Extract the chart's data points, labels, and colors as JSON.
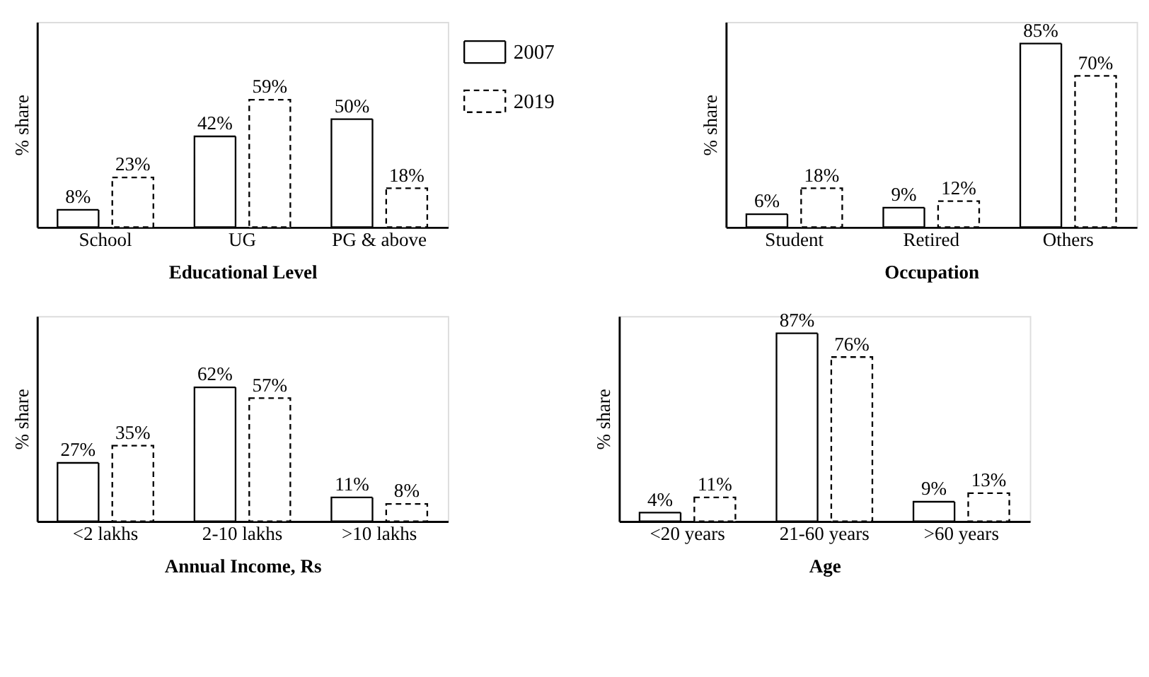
{
  "chart_data": [
    {
      "type": "bar",
      "categories": [
        "School",
        "UG",
        "PG & above"
      ],
      "xlabel": "Educational Level",
      "ylabel": "% share",
      "ylim": [
        0,
        95
      ],
      "tick_labels": "x",
      "legend": "top right",
      "grid": false,
      "series": [
        {
          "name": "2007",
          "color": "#ffffff",
          "line_style": "solid",
          "values": [
            8,
            42,
            50
          ],
          "value_labels": [
            "8%",
            "42%",
            "50%"
          ]
        },
        {
          "name": "2019",
          "color": "#ffffff",
          "line_style": "dashed",
          "values": [
            23,
            59,
            18
          ],
          "value_labels": [
            "23%",
            "59%",
            "18%"
          ]
        }
      ]
    },
    {
      "type": "bar",
      "categories": [
        "Student",
        "Retired",
        "Others"
      ],
      "xlabel": "Occupation",
      "ylabel": "% share",
      "ylim": [
        0,
        95
      ],
      "tick_labels": "x",
      "legend": false,
      "grid": false,
      "series": [
        {
          "color": "#ffffff",
          "line_style": "solid",
          "values": [
            6,
            9,
            85
          ],
          "value_labels": [
            "6%",
            "9%",
            "85%"
          ]
        },
        {
          "color": "#ffffff",
          "line_style": "dashed",
          "values": [
            18,
            12,
            70
          ],
          "value_labels": [
            "18%",
            "12%",
            "70%"
          ]
        }
      ]
    },
    {
      "type": "bar",
      "categories": [
        "<2 lakhs",
        "2-10 lakhs",
        ">10 lakhs"
      ],
      "xlabel": "Annual Income, Rs",
      "ylabel": "% share",
      "ylim": [
        0,
        95
      ],
      "tick_labels": "x",
      "legend": false,
      "grid": false,
      "series": [
        {
          "color": "#ffffff",
          "line_style": "solid",
          "values": [
            27,
            62,
            11
          ],
          "value_labels": [
            "27%",
            "62%",
            "11%"
          ]
        },
        {
          "color": "#ffffff",
          "line_style": "dashed",
          "values": [
            35,
            57,
            8
          ],
          "value_labels": [
            "35%",
            "57%",
            "8%"
          ]
        }
      ]
    },
    {
      "type": "bar",
      "categories": [
        "<20 years",
        "21-60 years",
        ">60 years"
      ],
      "xlabel": "Age",
      "ylabel": "% share",
      "ylim": [
        0,
        95
      ],
      "tick_labels": "x",
      "legend": false,
      "grid": false,
      "series": [
        {
          "color": "#ffffff",
          "line_style": "solid",
          "values": [
            4,
            87,
            9
          ],
          "value_labels": [
            "4%",
            "87%",
            "9%"
          ]
        },
        {
          "color": "#ffffff",
          "line_style": "dashed",
          "values": [
            11,
            76,
            13
          ],
          "value_labels": [
            "11%",
            "76%",
            "13%"
          ]
        }
      ]
    }
  ]
}
